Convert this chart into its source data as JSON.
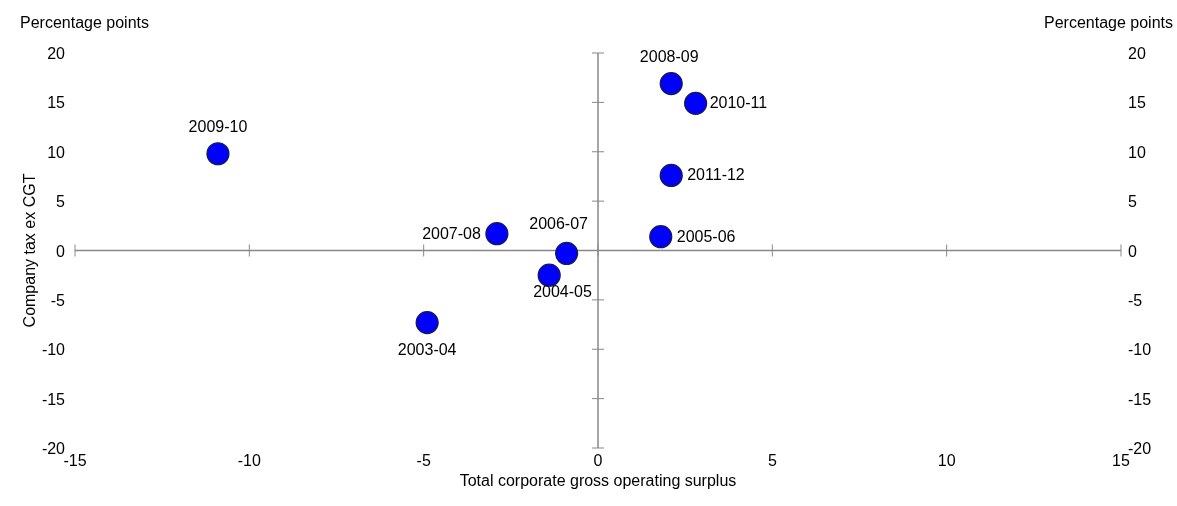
{
  "chart_data": {
    "type": "scatter",
    "xlabel": "Total corporate gross operating surplus",
    "ylabel": "Company tax ex CGT",
    "x": [
      -10.9,
      2.1,
      2.8,
      2.1,
      1.8,
      -0.9,
      -1.4,
      -2.9,
      -4.9
    ],
    "series": [
      {
        "color": "#0000ff",
        "values": [
          9.8,
          16.9,
          14.9,
          7.6,
          1.4,
          -0.3,
          -2.5,
          1.7,
          -7.3
        ]
      }
    ],
    "xlim": [
      -15,
      15
    ],
    "xticks": [
      -15,
      -10,
      -5,
      0,
      5,
      10,
      15
    ],
    "ylim": [
      -20,
      20
    ],
    "yticks": [
      -20,
      -15,
      -10,
      -5,
      0,
      5,
      10,
      15,
      20
    ],
    "y2lim": [
      -20,
      20
    ],
    "y2ticks": [
      -20,
      -15,
      -10,
      -5,
      0,
      5,
      10,
      15,
      20
    ],
    "marker": "circle",
    "annotations": [
      "Percentage points",
      "Percentage points",
      {
        "text": "2009-10",
        "x": -10.9,
        "y": 9.8
      },
      {
        "text": "2008-09",
        "x": 2.1,
        "y": 16.9
      },
      {
        "text": "2010-11",
        "x": 2.8,
        "y": 14.9
      },
      {
        "text": "2011-12",
        "x": 2.1,
        "y": 7.6
      },
      {
        "text": "2005-06",
        "x": 1.8,
        "y": 1.4
      },
      {
        "text": "2006-07",
        "x": -0.9,
        "y": -0.3
      },
      {
        "text": "2004-05",
        "x": -1.4,
        "y": -2.5
      },
      {
        "text": "2007-08",
        "x": -2.9,
        "y": 1.7
      },
      {
        "text": "2003-04",
        "x": -4.9,
        "y": -7.3
      }
    ]
  }
}
